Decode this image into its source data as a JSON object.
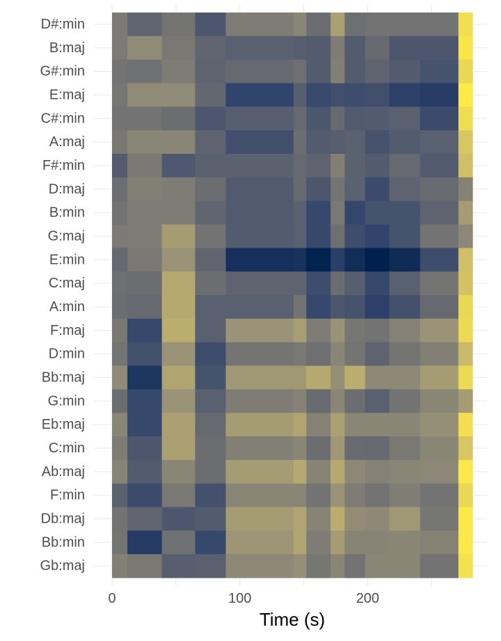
{
  "chart_data": {
    "type": "heatmap",
    "title": "",
    "xlabel": "Time (s)",
    "ylabel": "",
    "x_ticks": [
      0,
      100,
      200
    ],
    "x_edges": [
      0,
      12,
      39,
      65,
      89,
      142,
      152,
      171,
      182,
      198,
      217,
      241,
      271,
      282
    ],
    "xlim": [
      0,
      282
    ],
    "rows": [
      "D#:min",
      "B:maj",
      "G#:min",
      "E:maj",
      "C#:min",
      "A:maj",
      "F#:min",
      "D:maj",
      "B:min",
      "G:maj",
      "E:min",
      "C:maj",
      "A:min",
      "F:maj",
      "D:min",
      "Bb:maj",
      "G:min",
      "Eb:maj",
      "C:min",
      "Ab:maj",
      "F:min",
      "Db:maj",
      "Bb:min",
      "Gb:maj"
    ],
    "values": [
      [
        0.49,
        0.38,
        0.46,
        0.3,
        0.5,
        0.55,
        0.42,
        0.68,
        0.43,
        0.45,
        0.45,
        0.45,
        0.95
      ],
      [
        0.49,
        0.58,
        0.48,
        0.38,
        0.35,
        0.34,
        0.33,
        0.5,
        0.33,
        0.4,
        0.3,
        0.3,
        0.98
      ],
      [
        0.45,
        0.44,
        0.5,
        0.37,
        0.4,
        0.43,
        0.33,
        0.52,
        0.33,
        0.37,
        0.33,
        0.28,
        0.92
      ],
      [
        0.47,
        0.58,
        0.58,
        0.39,
        0.2,
        0.34,
        0.23,
        0.26,
        0.25,
        0.26,
        0.18,
        0.16,
        1.0
      ],
      [
        0.45,
        0.45,
        0.42,
        0.3,
        0.34,
        0.4,
        0.3,
        0.4,
        0.32,
        0.33,
        0.35,
        0.24,
        0.94
      ],
      [
        0.48,
        0.55,
        0.55,
        0.37,
        0.26,
        0.42,
        0.33,
        0.34,
        0.36,
        0.28,
        0.33,
        0.35,
        0.85
      ],
      [
        0.33,
        0.48,
        0.31,
        0.36,
        0.36,
        0.4,
        0.37,
        0.52,
        0.36,
        0.33,
        0.4,
        0.32,
        0.82
      ],
      [
        0.42,
        0.52,
        0.5,
        0.42,
        0.32,
        0.4,
        0.3,
        0.46,
        0.36,
        0.24,
        0.37,
        0.41,
        0.53
      ],
      [
        0.45,
        0.5,
        0.5,
        0.38,
        0.32,
        0.36,
        0.22,
        0.48,
        0.21,
        0.28,
        0.28,
        0.37,
        0.66
      ],
      [
        0.49,
        0.5,
        0.66,
        0.45,
        0.33,
        0.35,
        0.22,
        0.43,
        0.25,
        0.2,
        0.28,
        0.45,
        0.56
      ],
      [
        0.4,
        0.48,
        0.62,
        0.38,
        0.09,
        0.1,
        0.01,
        0.17,
        0.07,
        0.0,
        0.06,
        0.25,
        0.82
      ],
      [
        0.43,
        0.42,
        0.72,
        0.42,
        0.37,
        0.37,
        0.25,
        0.42,
        0.34,
        0.22,
        0.35,
        0.46,
        0.83
      ],
      [
        0.42,
        0.4,
        0.72,
        0.35,
        0.35,
        0.45,
        0.22,
        0.3,
        0.28,
        0.18,
        0.27,
        0.4,
        0.92
      ],
      [
        0.48,
        0.22,
        0.74,
        0.35,
        0.62,
        0.67,
        0.5,
        0.62,
        0.47,
        0.45,
        0.53,
        0.62,
        0.93
      ],
      [
        0.46,
        0.27,
        0.62,
        0.25,
        0.46,
        0.48,
        0.43,
        0.55,
        0.46,
        0.37,
        0.46,
        0.52,
        0.8
      ],
      [
        0.58,
        0.12,
        0.7,
        0.28,
        0.64,
        0.64,
        0.72,
        0.6,
        0.74,
        0.57,
        0.57,
        0.66,
        0.93
      ],
      [
        0.42,
        0.22,
        0.62,
        0.35,
        0.5,
        0.53,
        0.41,
        0.55,
        0.42,
        0.35,
        0.45,
        0.55,
        0.66
      ],
      [
        0.55,
        0.22,
        0.68,
        0.4,
        0.66,
        0.7,
        0.53,
        0.68,
        0.55,
        0.55,
        0.55,
        0.6,
        0.95
      ],
      [
        0.5,
        0.3,
        0.68,
        0.42,
        0.52,
        0.55,
        0.42,
        0.64,
        0.41,
        0.4,
        0.48,
        0.55,
        0.85
      ],
      [
        0.54,
        0.33,
        0.55,
        0.42,
        0.66,
        0.72,
        0.54,
        0.72,
        0.56,
        0.53,
        0.55,
        0.56,
        0.99
      ],
      [
        0.36,
        0.24,
        0.48,
        0.27,
        0.55,
        0.55,
        0.45,
        0.62,
        0.5,
        0.45,
        0.51,
        0.45,
        0.92
      ],
      [
        0.45,
        0.38,
        0.3,
        0.33,
        0.66,
        0.7,
        0.54,
        0.74,
        0.59,
        0.57,
        0.64,
        0.47,
        0.99
      ],
      [
        0.46,
        0.15,
        0.44,
        0.22,
        0.63,
        0.7,
        0.5,
        0.66,
        0.54,
        0.54,
        0.55,
        0.53,
        0.99
      ],
      [
        0.52,
        0.48,
        0.34,
        0.35,
        0.57,
        0.6,
        0.47,
        0.55,
        0.45,
        0.55,
        0.55,
        0.45,
        0.96
      ]
    ],
    "value_range": [
      0,
      1
    ],
    "colorscale": [
      "#00204d",
      "#31446b",
      "#666970",
      "#958f78",
      "#cbba69",
      "#ffea46"
    ],
    "grid": true,
    "legend": "none"
  }
}
